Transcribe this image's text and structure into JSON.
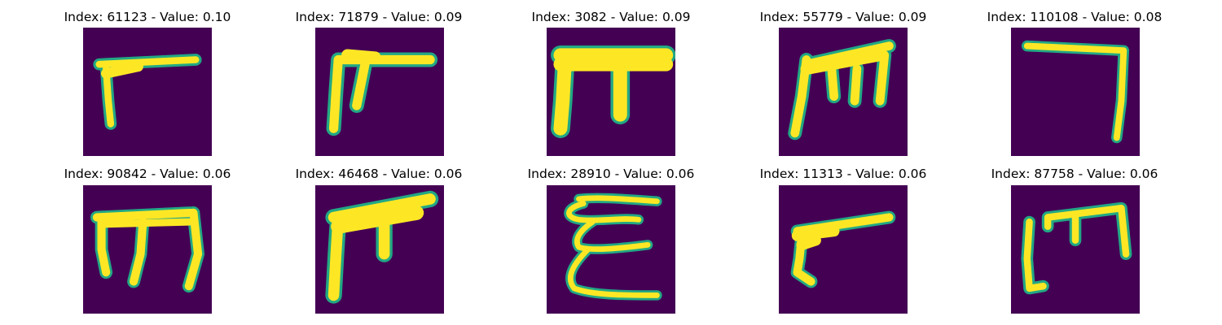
{
  "colors": {
    "background": "#440154",
    "stroke_core": "#fde725",
    "stroke_edge": "#22a884"
  },
  "panels": [
    {
      "title": "Index: 61123 - Value: 0.10",
      "glyph": "glyph-1"
    },
    {
      "title": "Index: 71879 - Value: 0.09",
      "glyph": "glyph-2"
    },
    {
      "title": "Index: 3082 - Value: 0.09",
      "glyph": "glyph-3"
    },
    {
      "title": "Index: 55779 - Value: 0.09",
      "glyph": "glyph-4"
    },
    {
      "title": "Index: 110108 - Value: 0.08",
      "glyph": "glyph-5"
    },
    {
      "title": "Index: 90842 - Value: 0.06",
      "glyph": "glyph-6"
    },
    {
      "title": "Index: 46468 - Value: 0.06",
      "glyph": "glyph-7"
    },
    {
      "title": "Index: 28910 - Value: 0.06",
      "glyph": "glyph-8"
    },
    {
      "title": "Index: 11313 - Value: 0.06",
      "glyph": "glyph-9"
    },
    {
      "title": "Index: 87758 - Value: 0.06",
      "glyph": "glyph-10"
    }
  ]
}
